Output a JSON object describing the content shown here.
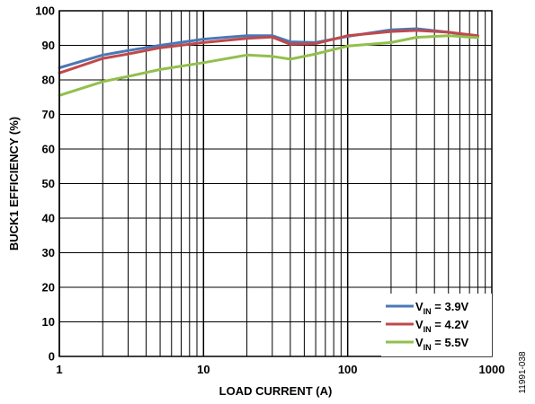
{
  "figure_id": "11991-038",
  "chart_data": {
    "type": "line",
    "xlabel": "LOAD CURRENT (A)",
    "ylabel": "BUCK1 EFFICIENCY (%)",
    "xscale": "log",
    "xlim": [
      1,
      1000
    ],
    "ylim": [
      0,
      100
    ],
    "x_ticks": [
      1,
      10,
      100,
      1000
    ],
    "x_tick_labels": [
      "1",
      "10",
      "100",
      "1000"
    ],
    "y_ticks": [
      0,
      10,
      20,
      30,
      40,
      50,
      60,
      70,
      80,
      90,
      100
    ],
    "y_tick_labels": [
      "0",
      "10",
      "20",
      "30",
      "40",
      "50",
      "60",
      "70",
      "80",
      "90",
      "100"
    ],
    "grid": true,
    "legend_position": "bottom-right",
    "series": [
      {
        "name": "V_IN = 3.9V",
        "legend_main": "V",
        "legend_sub": "IN",
        "legend_tail": " = 3.9V",
        "color": "#4a78b5",
        "x": [
          1,
          2,
          3,
          5,
          10,
          20,
          30,
          40,
          60,
          100,
          200,
          300,
          500,
          800
        ],
        "y": [
          83.5,
          87.2,
          88.5,
          90.0,
          91.8,
          92.8,
          92.8,
          91.0,
          90.8,
          92.6,
          94.5,
          94.8,
          93.8,
          92.5
        ]
      },
      {
        "name": "V_IN = 4.2V",
        "legend_main": "V",
        "legend_sub": "IN",
        "legend_tail": " = 4.2V",
        "color": "#c0494c",
        "x": [
          1,
          2,
          3,
          5,
          10,
          20,
          30,
          40,
          60,
          100,
          200,
          300,
          500,
          800
        ],
        "y": [
          82.0,
          86.2,
          87.5,
          89.3,
          90.8,
          92.0,
          92.4,
          90.3,
          90.5,
          92.8,
          94.0,
          94.3,
          93.8,
          92.8
        ]
      },
      {
        "name": "V_IN = 5.5V",
        "legend_main": "V",
        "legend_sub": "IN",
        "legend_tail": " = 5.5V",
        "color": "#93bf4d",
        "x": [
          1,
          2,
          3,
          5,
          10,
          20,
          30,
          40,
          60,
          100,
          200,
          300,
          500,
          800
        ],
        "y": [
          75.5,
          79.5,
          81.0,
          83.0,
          85.0,
          87.2,
          86.8,
          86.0,
          87.5,
          89.8,
          90.8,
          92.3,
          92.8,
          92.2
        ]
      }
    ]
  }
}
